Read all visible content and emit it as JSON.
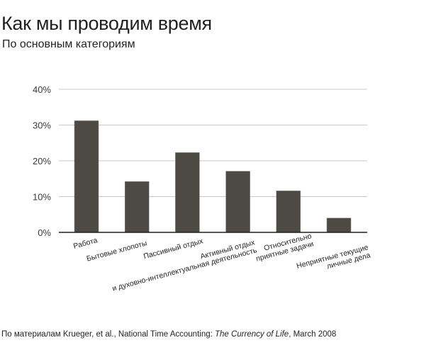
{
  "title": "Как мы проводим время",
  "subtitle": "По основным категориям",
  "source": {
    "prefix": "По материалам Krueger, et al., National Time Accounting: ",
    "italic": "The Currency of Life",
    "suffix": ", March 2008"
  },
  "chart_data": {
    "type": "bar",
    "categories": [
      [
        "Работа"
      ],
      [
        "Бытовые хлопоты"
      ],
      [
        "Пассивный отдых"
      ],
      [
        "Активный отдых",
        "и духовно-интеллектуальная деятельность"
      ],
      [
        "Относительно",
        "приятные задачи"
      ],
      [
        "Неприятные текущие",
        "личные дела"
      ]
    ],
    "values": [
      31.2,
      14.2,
      22.3,
      17.1,
      11.6,
      4.0
    ],
    "ylim": [
      0,
      40
    ],
    "yticks": [
      0,
      10,
      20,
      30,
      40
    ],
    "ytick_labels": [
      "0%",
      "10%",
      "20%",
      "30%",
      "40%"
    ],
    "grid": true,
    "bar_color": "#4d4943",
    "grid_color": "#c8c8c8"
  }
}
